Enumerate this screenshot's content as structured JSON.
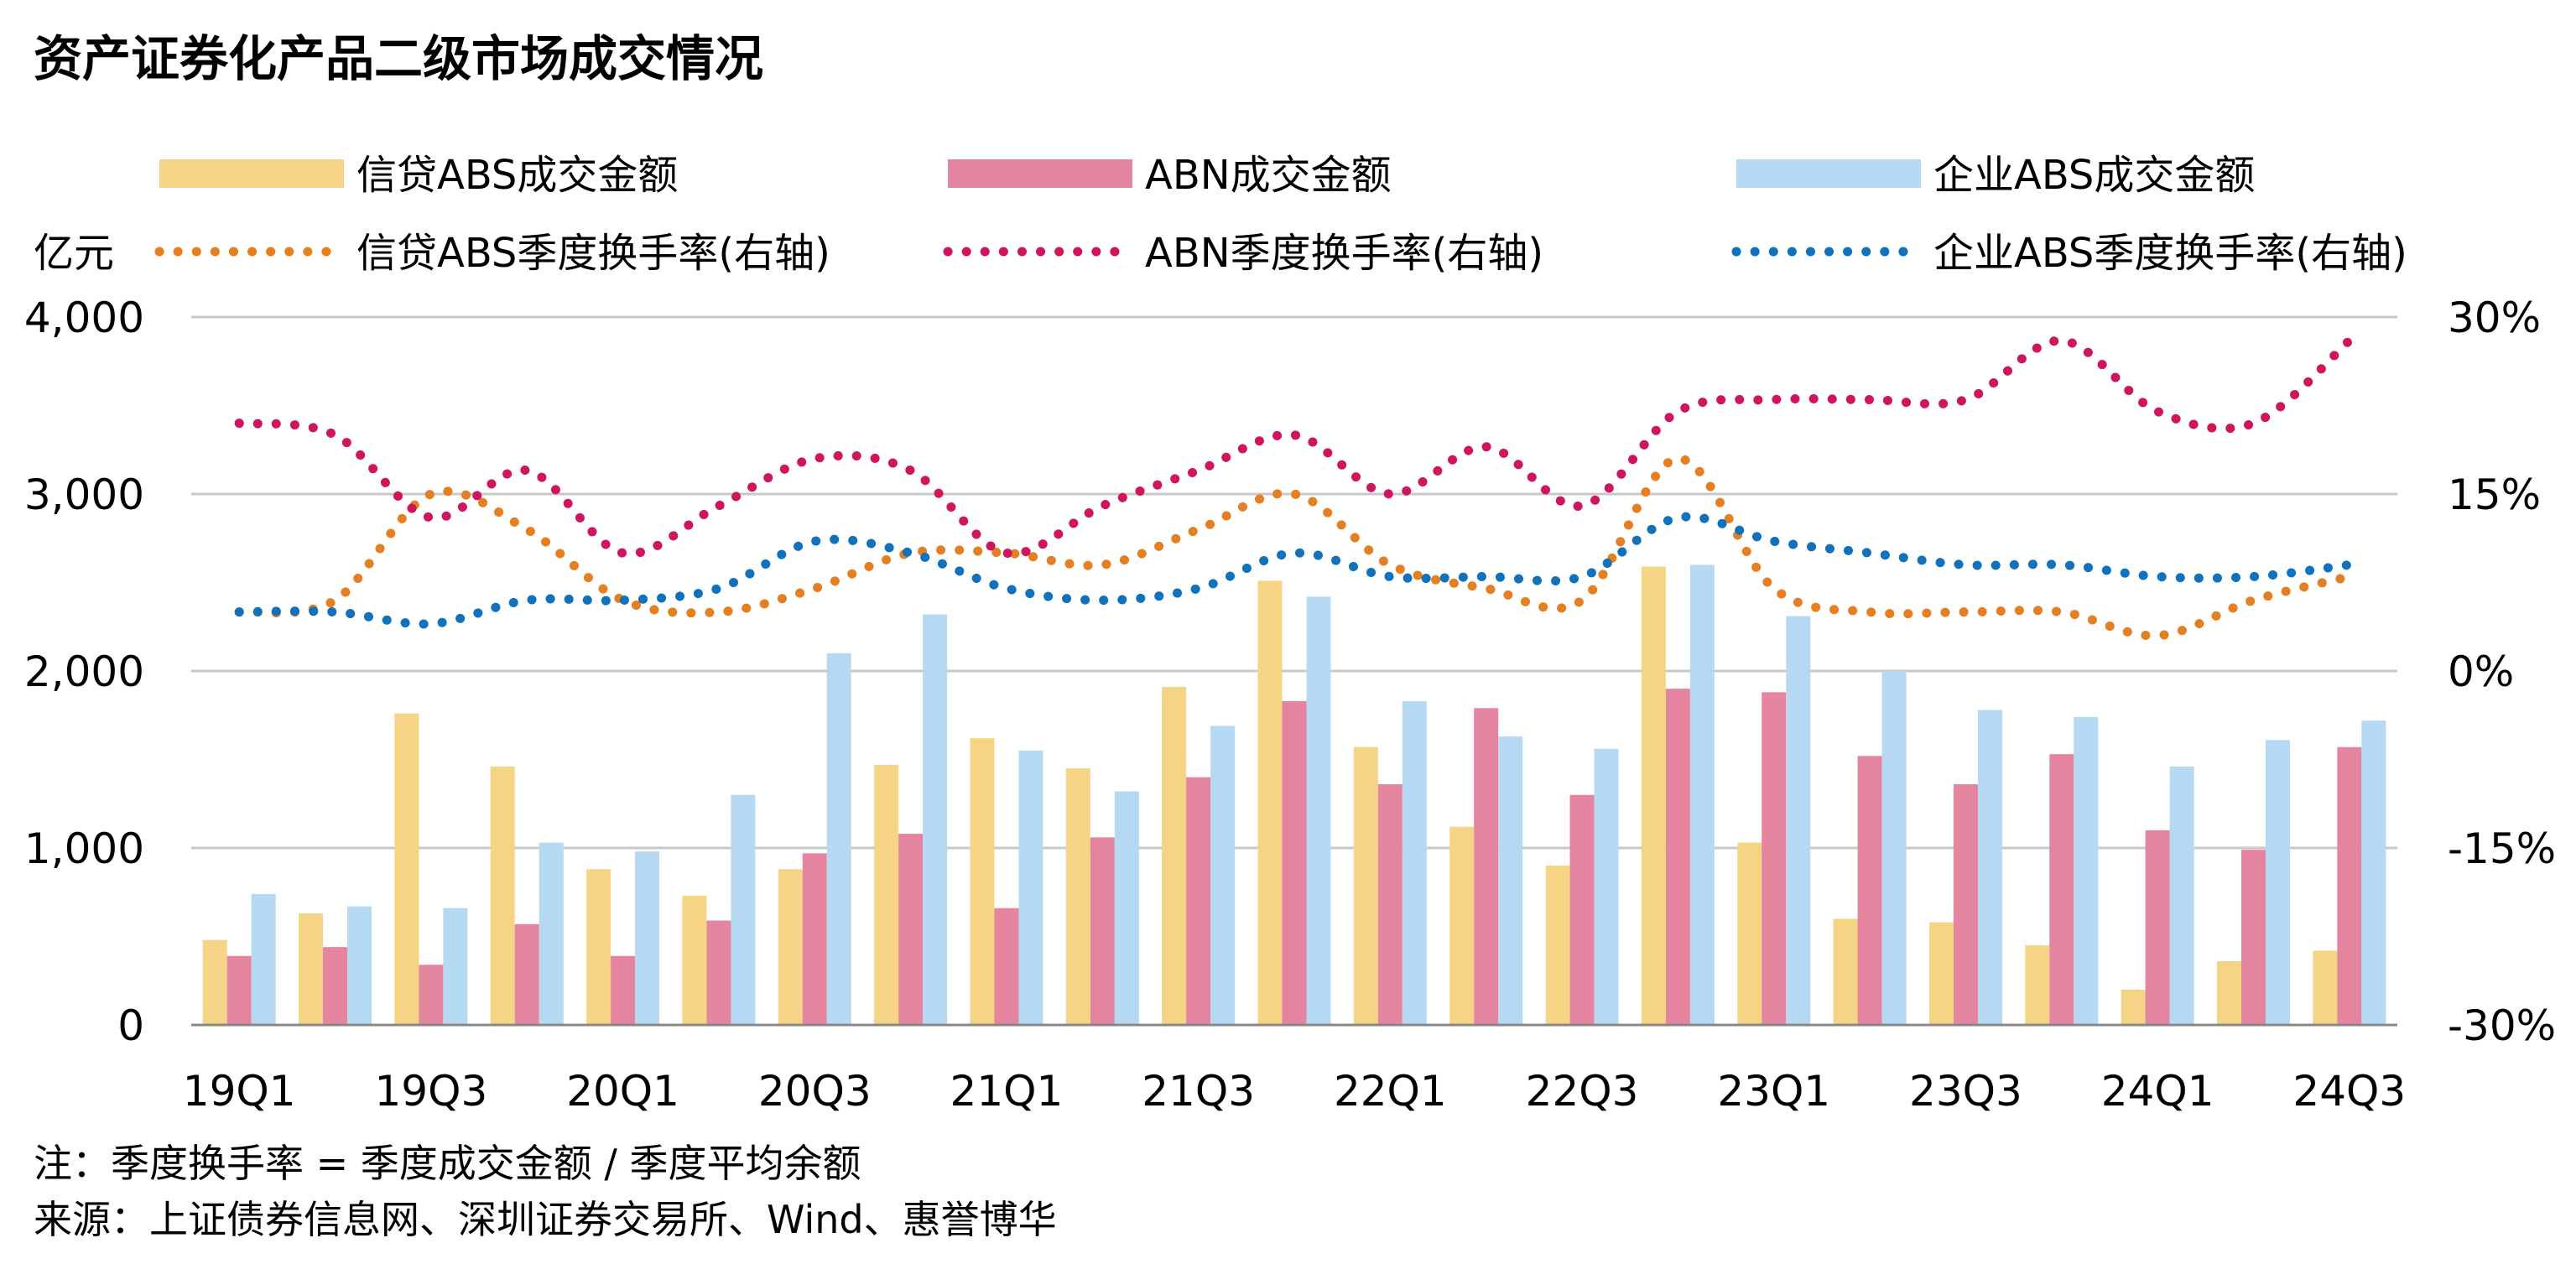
{
  "chart_data": {
    "type": "bar",
    "title": "资产证券化产品二级市场成交情况",
    "ylabel": "亿元",
    "ylim": [
      0,
      4000
    ],
    "y_ticks": [
      "0",
      "1,000",
      "2,000",
      "3,000",
      "4,000"
    ],
    "y2lim": [
      -30,
      30
    ],
    "y2_ticks": [
      "-30%",
      "-15%",
      "0%",
      "15%",
      "30%"
    ],
    "grid": true,
    "legend_position": "top",
    "categories": [
      "19Q1",
      "19Q2",
      "19Q3",
      "19Q4",
      "20Q1",
      "20Q2",
      "20Q3",
      "20Q4",
      "21Q1",
      "21Q2",
      "21Q3",
      "21Q4",
      "22Q1",
      "22Q2",
      "22Q3",
      "22Q4",
      "23Q1",
      "23Q2",
      "23Q3",
      "23Q4",
      "24Q1",
      "24Q2",
      "24Q3"
    ],
    "x_tick_labels": [
      "19Q1",
      "19Q3",
      "20Q1",
      "20Q3",
      "21Q1",
      "21Q3",
      "22Q1",
      "22Q3",
      "23Q1",
      "23Q3",
      "24Q1",
      "24Q3"
    ],
    "bar_series": [
      {
        "name": "信贷ABS成交金额",
        "color": "#F5D585",
        "values": [
          480,
          630,
          1760,
          1460,
          880,
          730,
          880,
          1470,
          1620,
          1450,
          1910,
          2510,
          1570,
          1120,
          900,
          2590,
          1030,
          600,
          580,
          450,
          200,
          360,
          420
        ]
      },
      {
        "name": "ABN成交金额",
        "color": "#E5849F",
        "values": [
          390,
          440,
          340,
          570,
          390,
          590,
          970,
          1080,
          660,
          1060,
          1400,
          1830,
          1360,
          1790,
          1300,
          1900,
          1880,
          1520,
          1360,
          1530,
          1100,
          990,
          1570
        ]
      },
      {
        "name": "企业ABS成交金额",
        "color": "#B5D9F2",
        "values": [
          740,
          670,
          660,
          1030,
          980,
          1300,
          2100,
          2320,
          1550,
          1320,
          1690,
          2420,
          1830,
          1630,
          1560,
          2600,
          2310,
          2000,
          1780,
          1740,
          1460,
          1610,
          1720
        ]
      }
    ],
    "line_series": [
      {
        "name": "信贷ABS季度换手率(右轴)",
        "color": "#E67E22",
        "values": [
          5,
          6,
          15,
          12,
          6,
          5,
          7,
          10,
          10,
          9,
          12,
          15,
          9,
          7,
          6,
          18,
          7,
          5,
          5,
          5,
          3,
          6,
          8
        ]
      },
      {
        "name": "ABN季度换手率(右轴)",
        "color": "#D0155F",
        "values": [
          21,
          20,
          13,
          17,
          10,
          14,
          18,
          17,
          10,
          14,
          17,
          20,
          15,
          19,
          14,
          22,
          23,
          23,
          23,
          28,
          22,
          21,
          28
        ]
      },
      {
        "name": "企业ABS季度换手率(右轴)",
        "color": "#1071BD",
        "values": [
          5,
          5,
          4,
          6,
          6,
          7,
          11,
          10,
          7,
          6,
          7,
          10,
          8,
          8,
          8,
          13,
          11,
          10,
          9,
          9,
          8,
          8,
          9
        ]
      }
    ],
    "notes": [
      "注：季度换手率 = 季度成交金额 / 季度平均余额",
      "来源：上证债券信息网、深圳证券交易所、Wind、惠誉博华"
    ]
  }
}
